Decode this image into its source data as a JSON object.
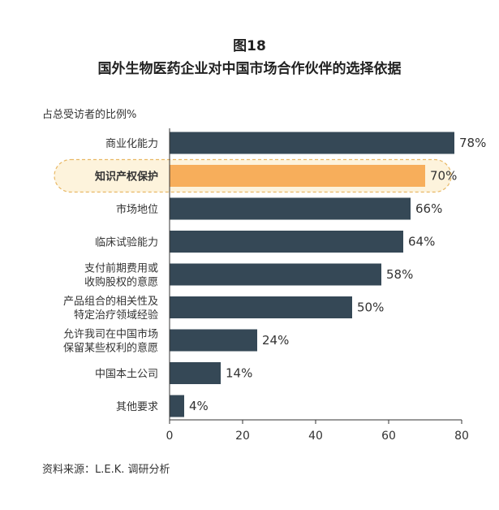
{
  "figure_number": "图18",
  "title": "国外生物医药企业对中国市场合作伙伴的选择依据",
  "unit_label": "占总受访者的比例%",
  "source": "资料来源：L.E.K. 调研分析",
  "colors": {
    "bar": "#354856",
    "highlight_bar": "#F7AE5B",
    "highlight_background": "#FDF3DC",
    "highlight_border": "#E8B865",
    "axis": "#333333"
  },
  "chart_data": {
    "type": "bar",
    "orientation": "horizontal",
    "categories": [
      [
        "商业化能力"
      ],
      [
        "知识产权保护"
      ],
      [
        "市场地位"
      ],
      [
        "临床试验能力"
      ],
      [
        "支付前期费用或",
        "收购股权的意愿"
      ],
      [
        "产品组合的相关性及",
        "特定治疗领域经验"
      ],
      [
        "允许我司在中国市场",
        "保留某些权利的意愿"
      ],
      [
        "中国本土公司"
      ],
      [
        "其他要求"
      ]
    ],
    "values": [
      78,
      70,
      66,
      64,
      58,
      50,
      24,
      14,
      4
    ],
    "value_labels": [
      "78%",
      "70%",
      "66%",
      "64%",
      "58%",
      "50%",
      "24%",
      "14%",
      "4%"
    ],
    "highlight_index": 1,
    "xlim": [
      0,
      80
    ],
    "xticks": [
      0,
      20,
      40,
      60,
      80
    ],
    "grid": false
  }
}
